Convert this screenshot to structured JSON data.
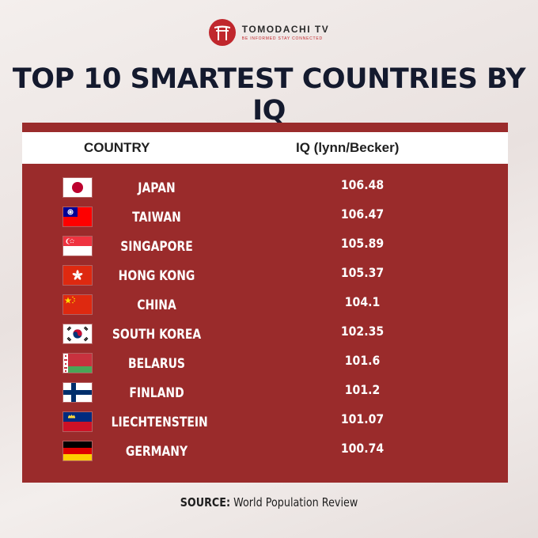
{
  "brand": {
    "name": "TOMODACHI TV",
    "tagline": "BE INFORMED STAY CONNECTED"
  },
  "colors": {
    "panel": "#9a2b2b",
    "accent": "#c0272d",
    "title": "#141a2e"
  },
  "chart_data": {
    "type": "table",
    "title": "TOP 10 SMARTEST COUNTRIES BY IQ",
    "columns": [
      "COUNTRY",
      "IQ (lynn/Becker)"
    ],
    "rows": [
      {
        "country": "JAPAN",
        "iq": "106.48",
        "flag": "japan-flag-icon"
      },
      {
        "country": "TAIWAN",
        "iq": "106.47",
        "flag": "taiwan-flag-icon"
      },
      {
        "country": "SINGAPORE",
        "iq": "105.89",
        "flag": "singapore-flag-icon"
      },
      {
        "country": "HONG KONG",
        "iq": "105.37",
        "flag": "hong-kong-flag-icon"
      },
      {
        "country": "CHINA",
        "iq": "104.1",
        "flag": "china-flag-icon"
      },
      {
        "country": "SOUTH KOREA",
        "iq": "102.35",
        "flag": "south-korea-flag-icon"
      },
      {
        "country": "BELARUS",
        "iq": "101.6",
        "flag": "belarus-flag-icon"
      },
      {
        "country": "FINLAND",
        "iq": "101.2",
        "flag": "finland-flag-icon"
      },
      {
        "country": "LIECHTENSTEIN",
        "iq": "101.07",
        "flag": "liechtenstein-flag-icon"
      },
      {
        "country": "GERMANY",
        "iq": "100.74",
        "flag": "germany-flag-icon"
      }
    ]
  },
  "source": {
    "label": "SOURCE:",
    "text": "World Population Review"
  }
}
